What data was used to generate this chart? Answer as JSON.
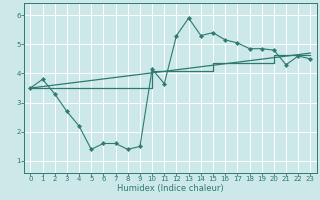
{
  "title": "",
  "xlabel": "Humidex (Indice chaleur)",
  "ylabel": "",
  "background_color": "#cce8e8",
  "line_color": "#2d7a6e",
  "xlim": [
    -0.5,
    23.5
  ],
  "ylim": [
    0.6,
    6.4
  ],
  "yticks": [
    1,
    2,
    3,
    4,
    5,
    6
  ],
  "xticks": [
    0,
    1,
    2,
    3,
    4,
    5,
    6,
    7,
    8,
    9,
    10,
    11,
    12,
    13,
    14,
    15,
    16,
    17,
    18,
    19,
    20,
    21,
    22,
    23
  ],
  "series1_x": [
    0,
    1,
    2,
    3,
    4,
    5,
    6,
    7,
    8,
    9,
    10,
    11,
    12,
    13,
    14,
    15,
    16,
    17,
    18,
    19,
    20,
    21,
    22,
    23
  ],
  "series1_y": [
    3.5,
    3.8,
    3.3,
    2.7,
    2.2,
    1.4,
    1.6,
    1.6,
    1.4,
    1.5,
    4.15,
    3.65,
    5.3,
    5.9,
    5.3,
    5.4,
    5.15,
    5.05,
    4.85,
    4.85,
    4.8,
    4.3,
    4.6,
    4.5
  ],
  "series2_x": [
    0,
    10,
    10,
    15,
    15,
    20,
    20,
    23
  ],
  "series2_y": [
    3.5,
    3.5,
    4.1,
    4.1,
    4.35,
    4.35,
    4.62,
    4.62
  ],
  "series3_x": [
    0,
    23
  ],
  "series3_y": [
    3.5,
    4.7
  ]
}
